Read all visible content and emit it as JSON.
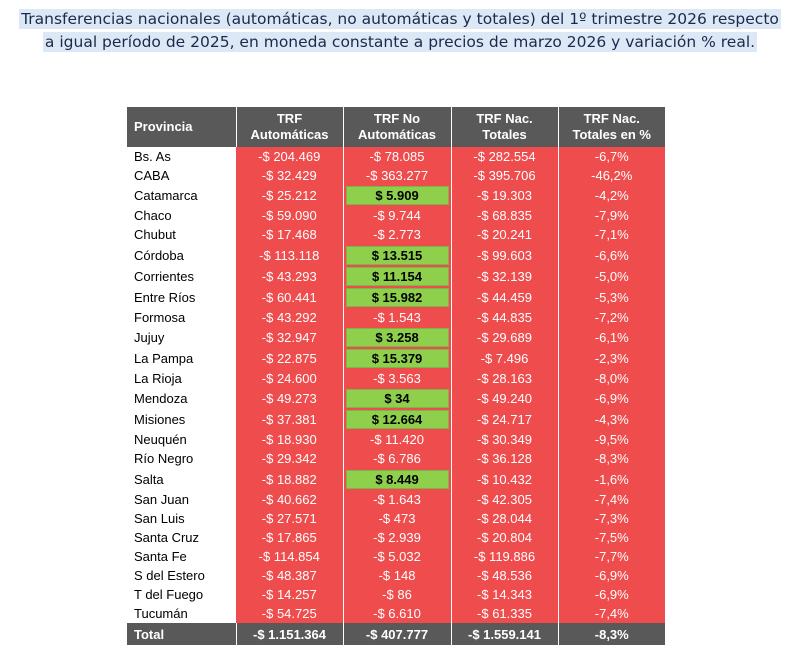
{
  "title": {
    "line1": "Transferencias nacionales (automáticas, no automáticas y totales) del 1º trimestre 2026 respecto",
    "line2": "a igual período de 2025, en moneda constante a precios de marzo 2026 y variación % real."
  },
  "table": {
    "headers": {
      "provincia": "Provincia",
      "auto_l1": "TRF",
      "auto_l2": "Automáticas",
      "noauto_l1": "TRF No",
      "noauto_l2": "Automáticas",
      "tot_l1": "TRF Nac.",
      "tot_l2": "Totales",
      "pct_l1": "TRF Nac.",
      "pct_l2": "Totales en %"
    },
    "rows": [
      {
        "provincia": "Bs. As",
        "automaticas": "-$ 204.469",
        "no_automaticas": "-$ 78.085",
        "no_auto_positive": false,
        "totales": "-$ 282.554",
        "pct": "-6,7%"
      },
      {
        "provincia": "CABA",
        "automaticas": "-$ 32.429",
        "no_automaticas": "-$ 363.277",
        "no_auto_positive": false,
        "totales": "-$ 395.706",
        "pct": "-46,2%"
      },
      {
        "provincia": "Catamarca",
        "automaticas": "-$ 25.212",
        "no_automaticas": "$ 5.909",
        "no_auto_positive": true,
        "totales": "-$ 19.303",
        "pct": "-4,2%"
      },
      {
        "provincia": "Chaco",
        "automaticas": "-$ 59.090",
        "no_automaticas": "-$ 9.744",
        "no_auto_positive": false,
        "totales": "-$ 68.835",
        "pct": "-7,9%"
      },
      {
        "provincia": "Chubut",
        "automaticas": "-$ 17.468",
        "no_automaticas": "-$ 2.773",
        "no_auto_positive": false,
        "totales": "-$ 20.241",
        "pct": "-7,1%"
      },
      {
        "provincia": "Córdoba",
        "automaticas": "-$ 113.118",
        "no_automaticas": "$ 13.515",
        "no_auto_positive": true,
        "totales": "-$ 99.603",
        "pct": "-6,6%"
      },
      {
        "provincia": "Corrientes",
        "automaticas": "-$ 43.293",
        "no_automaticas": "$ 11.154",
        "no_auto_positive": true,
        "totales": "-$ 32.139",
        "pct": "-5,0%"
      },
      {
        "provincia": "Entre Ríos",
        "automaticas": "-$ 60.441",
        "no_automaticas": "$ 15.982",
        "no_auto_positive": true,
        "totales": "-$ 44.459",
        "pct": "-5,3%"
      },
      {
        "provincia": "Formosa",
        "automaticas": "-$ 43.292",
        "no_automaticas": "-$ 1.543",
        "no_auto_positive": false,
        "totales": "-$ 44.835",
        "pct": "-7,2%"
      },
      {
        "provincia": "Jujuy",
        "automaticas": "-$ 32.947",
        "no_automaticas": "$ 3.258",
        "no_auto_positive": true,
        "totales": "-$ 29.689",
        "pct": "-6,1%"
      },
      {
        "provincia": "La Pampa",
        "automaticas": "-$ 22.875",
        "no_automaticas": "$ 15.379",
        "no_auto_positive": true,
        "totales": "-$ 7.496",
        "pct": "-2,3%"
      },
      {
        "provincia": "La Rioja",
        "automaticas": "-$ 24.600",
        "no_automaticas": "-$ 3.563",
        "no_auto_positive": false,
        "totales": "-$ 28.163",
        "pct": "-8,0%"
      },
      {
        "provincia": "Mendoza",
        "automaticas": "-$ 49.273",
        "no_automaticas": "$ 34",
        "no_auto_positive": true,
        "totales": "-$ 49.240",
        "pct": "-6,9%"
      },
      {
        "provincia": "Misiones",
        "automaticas": "-$ 37.381",
        "no_automaticas": "$ 12.664",
        "no_auto_positive": true,
        "totales": "-$ 24.717",
        "pct": "-4,3%"
      },
      {
        "provincia": "Neuquén",
        "automaticas": "-$ 18.930",
        "no_automaticas": "-$ 11.420",
        "no_auto_positive": false,
        "totales": "-$ 30.349",
        "pct": "-9,5%"
      },
      {
        "provincia": "Río Negro",
        "automaticas": "-$ 29.342",
        "no_automaticas": "-$ 6.786",
        "no_auto_positive": false,
        "totales": "-$ 36.128",
        "pct": "-8,3%"
      },
      {
        "provincia": "Salta",
        "automaticas": "-$ 18.882",
        "no_automaticas": "$ 8.449",
        "no_auto_positive": true,
        "totales": "-$ 10.432",
        "pct": "-1,6%"
      },
      {
        "provincia": "San Juan",
        "automaticas": "-$ 40.662",
        "no_automaticas": "-$ 1.643",
        "no_auto_positive": false,
        "totales": "-$ 42.305",
        "pct": "-7,4%"
      },
      {
        "provincia": "San Luis",
        "automaticas": "-$ 27.571",
        "no_automaticas": "-$ 473",
        "no_auto_positive": false,
        "totales": "-$ 28.044",
        "pct": "-7,3%"
      },
      {
        "provincia": "Santa Cruz",
        "automaticas": "-$ 17.865",
        "no_automaticas": "-$ 2.939",
        "no_auto_positive": false,
        "totales": "-$ 20.804",
        "pct": "-7,5%"
      },
      {
        "provincia": "Santa Fe",
        "automaticas": "-$ 114.854",
        "no_automaticas": "-$ 5.032",
        "no_auto_positive": false,
        "totales": "-$ 119.886",
        "pct": "-7,7%"
      },
      {
        "provincia": "S del Estero",
        "automaticas": "-$ 48.387",
        "no_automaticas": "-$ 148",
        "no_auto_positive": false,
        "totales": "-$ 48.536",
        "pct": "-6,9%"
      },
      {
        "provincia": "T del Fuego",
        "automaticas": "-$ 14.257",
        "no_automaticas": "-$ 86",
        "no_auto_positive": false,
        "totales": "-$ 14.343",
        "pct": "-6,9%"
      },
      {
        "provincia": "Tucumán",
        "automaticas": "-$ 54.725",
        "no_automaticas": "-$ 6.610",
        "no_auto_positive": false,
        "totales": "-$ 61.335",
        "pct": "-7,4%"
      }
    ],
    "total": {
      "label": "Total",
      "automaticas": "-$ 1.151.364",
      "no_automaticas": "-$ 407.777",
      "totales": "-$ 1.559.141",
      "pct": "-8,3%"
    }
  },
  "colors": {
    "negative_cell": "#ef4c4d",
    "positive_cell": "#8ed04c",
    "header": "#595959",
    "title_highlight": "#dde8f7"
  }
}
